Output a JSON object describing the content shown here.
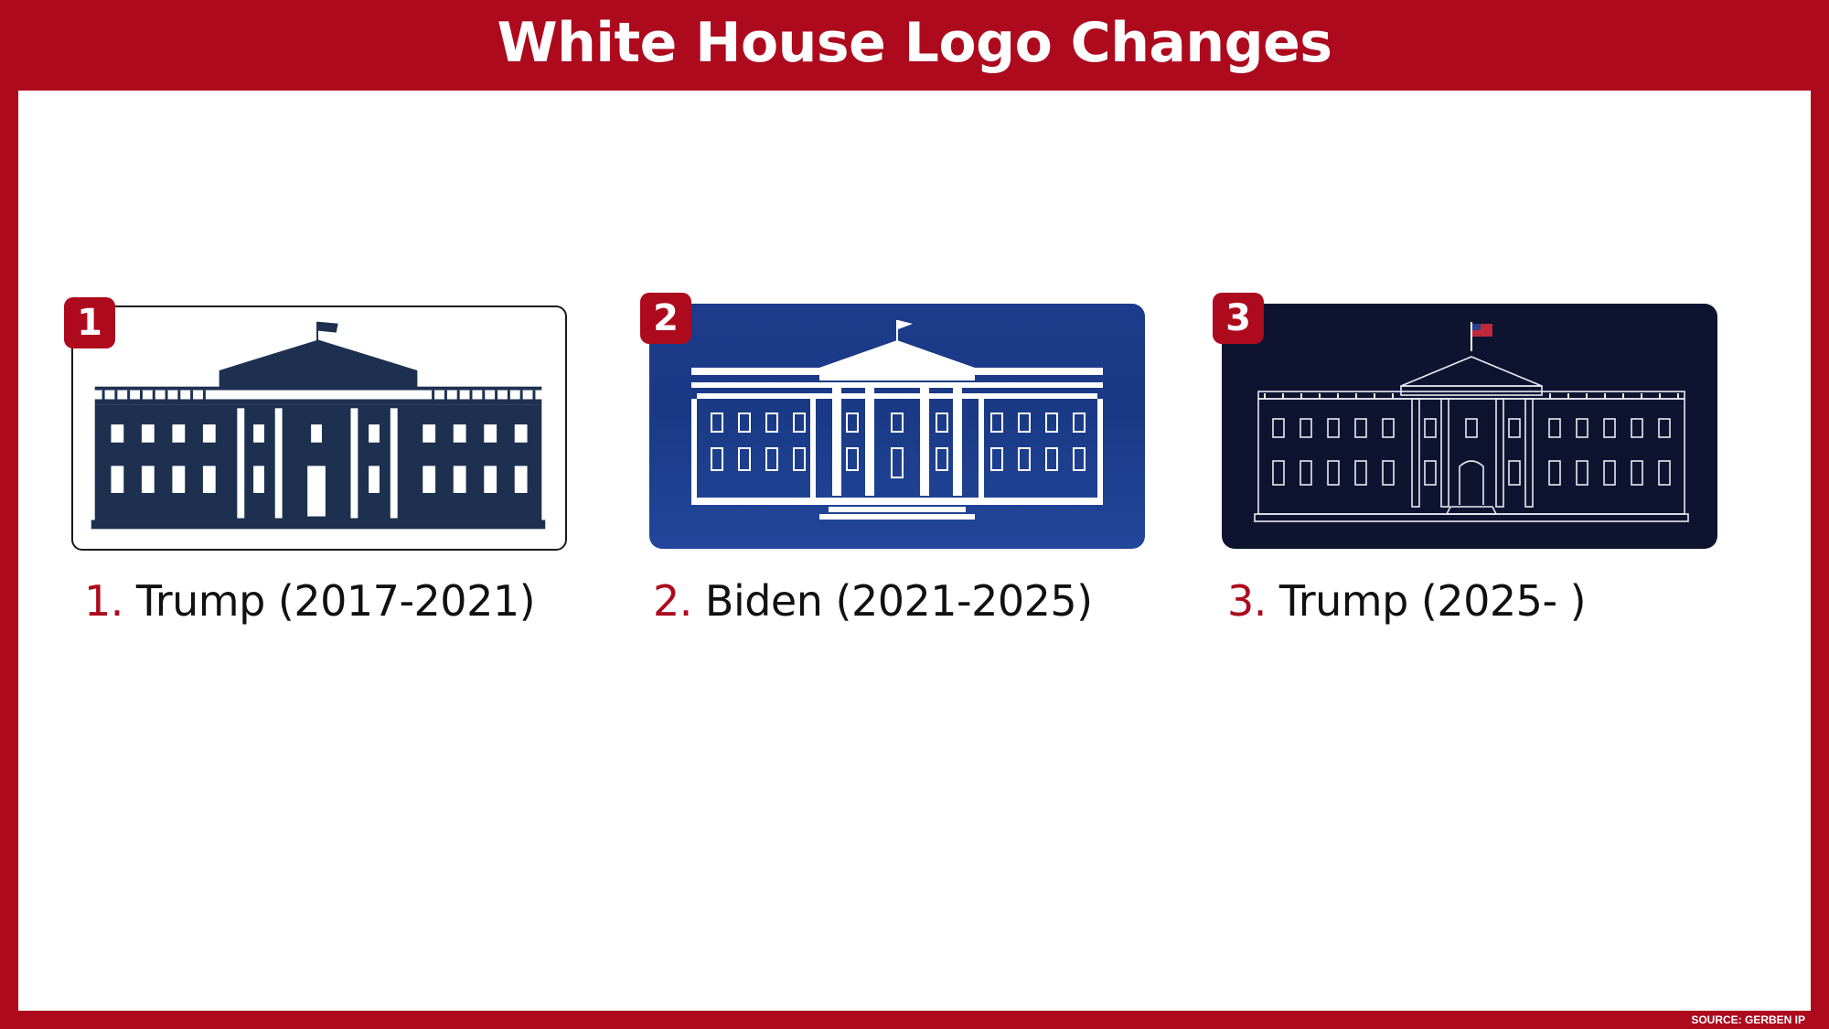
{
  "header": {
    "title": "White House Logo Changes"
  },
  "footer": {
    "source": "SOURCE: GERBEN IP"
  },
  "colors": {
    "brand_red": "#ad0a1e",
    "logo1_navy": "#1d3050",
    "logo2_blue": "#1c3b8a",
    "logo3_dark": "#0e1430"
  },
  "logos": [
    {
      "badge": "1",
      "number": "1.",
      "caption": "Trump (2017-2021)",
      "style": "navy-silhouette-on-white"
    },
    {
      "badge": "2",
      "number": "2.",
      "caption": "Biden (2021-2025)",
      "style": "white-silhouette-on-blue"
    },
    {
      "badge": "3",
      "number": "3.",
      "caption": "Trump (2025- )",
      "style": "white-line-drawing-on-dark-navy"
    }
  ]
}
